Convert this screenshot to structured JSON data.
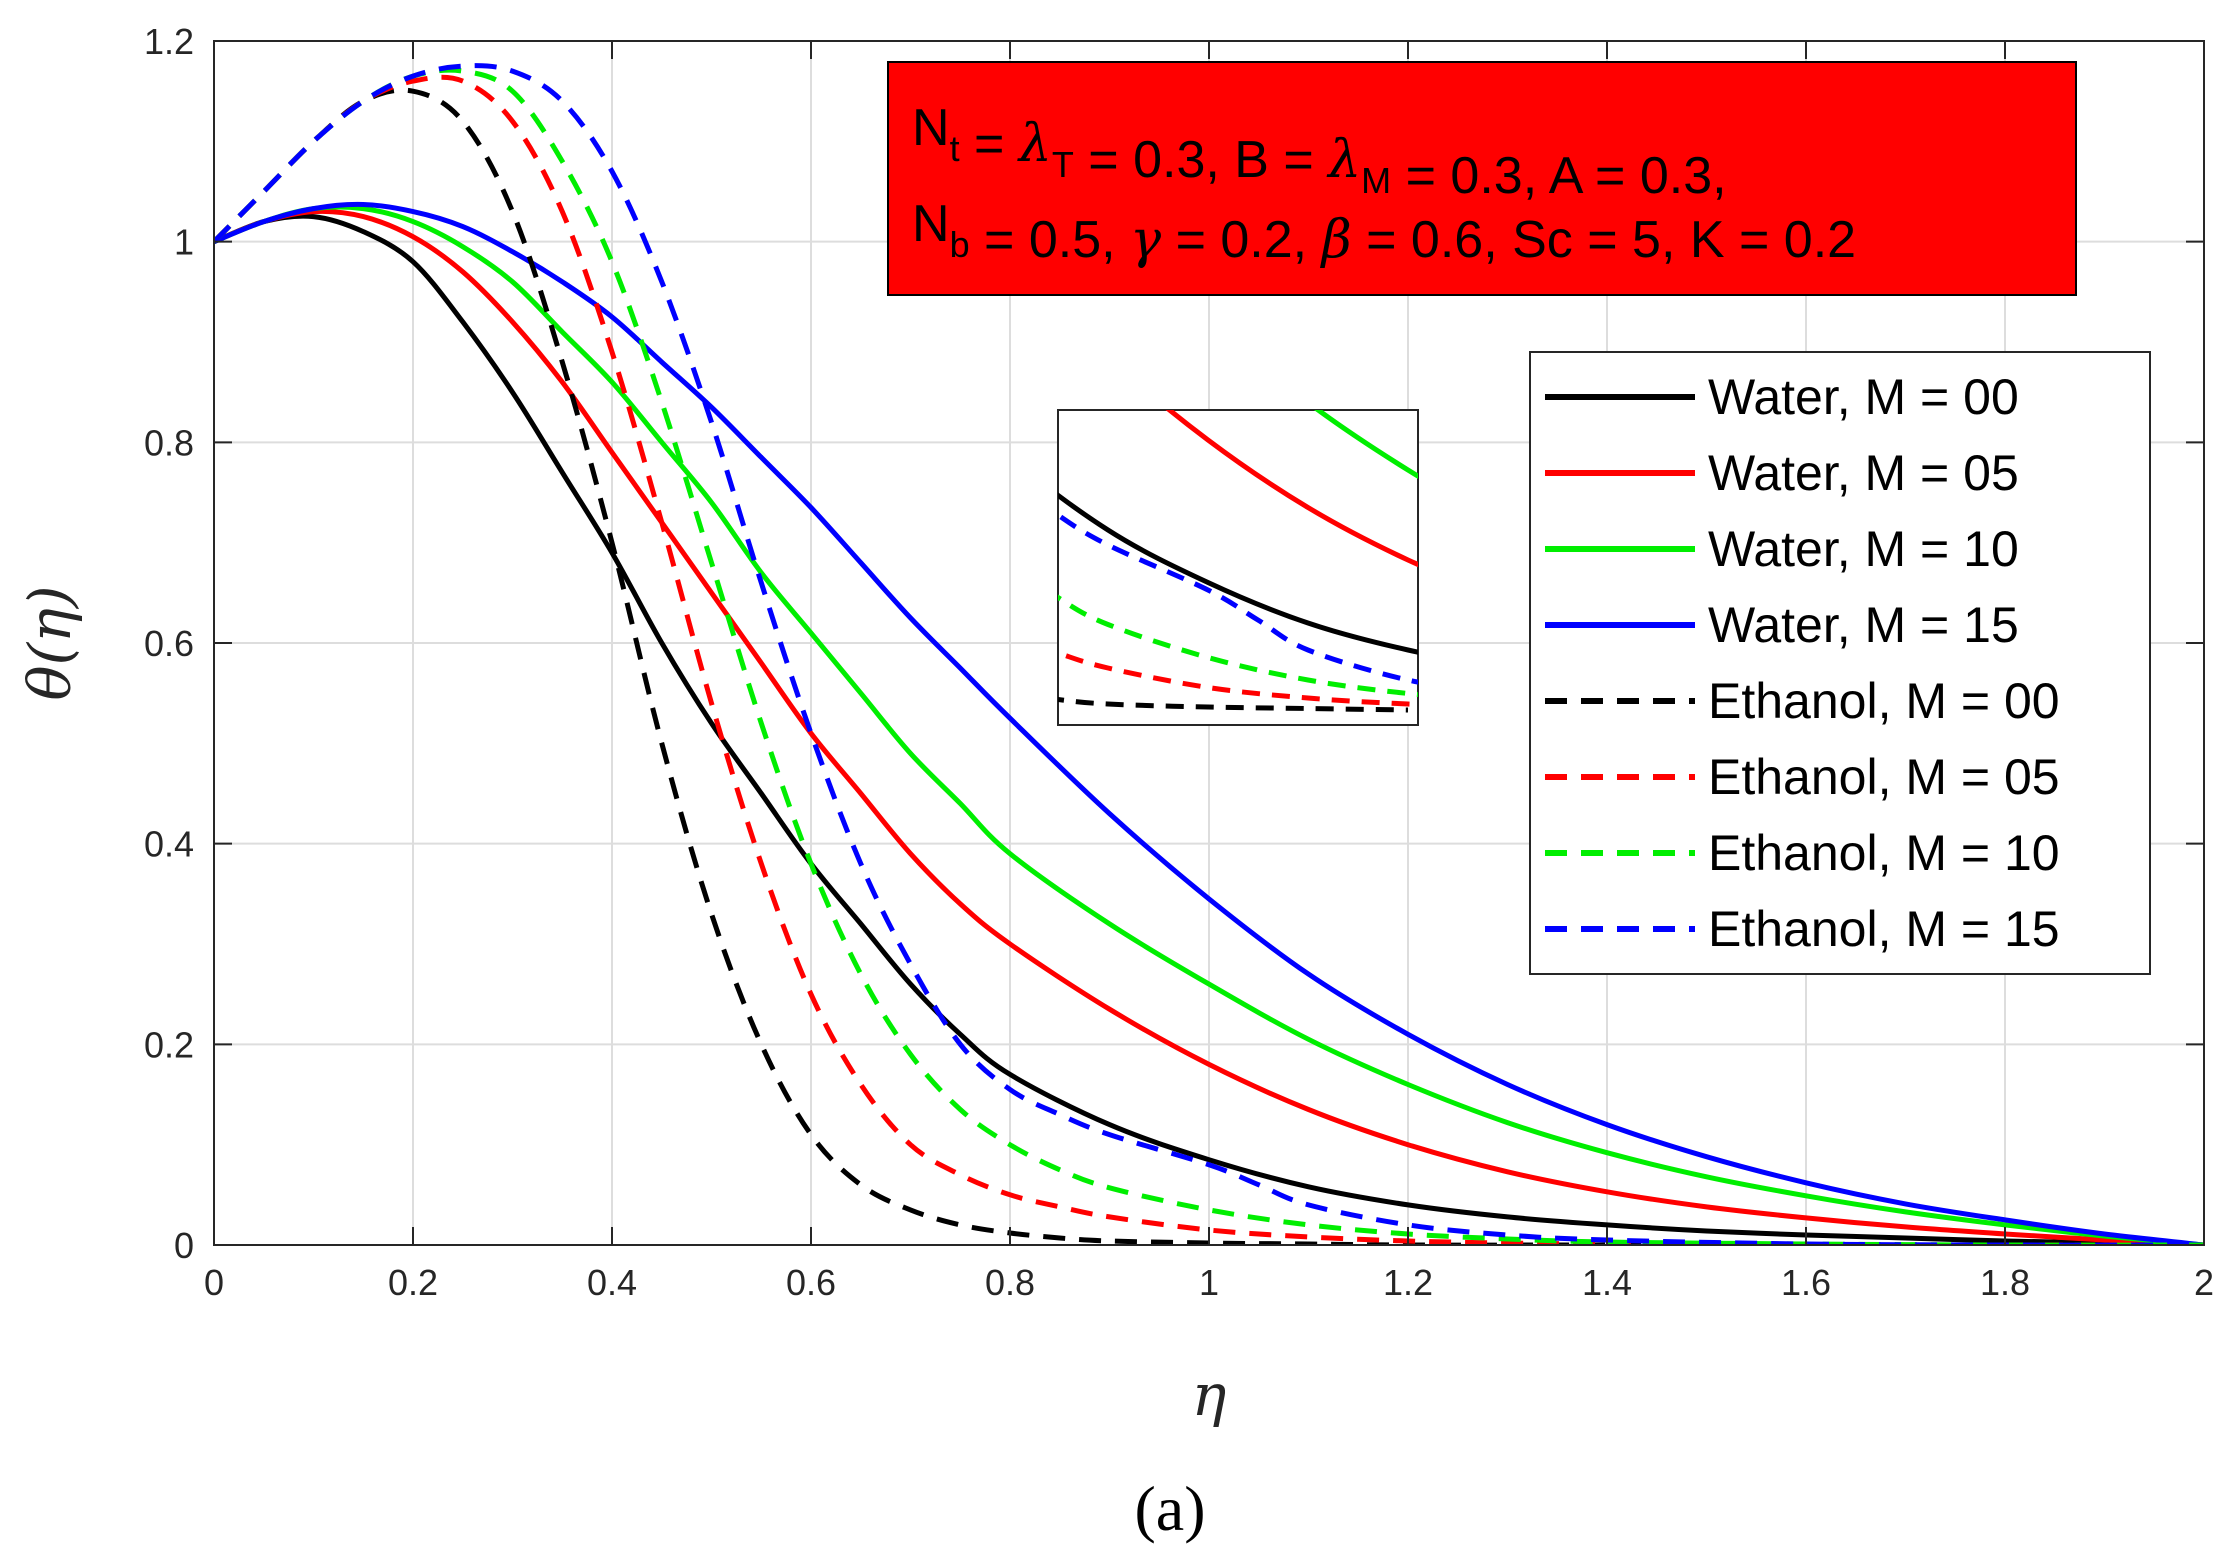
{
  "chart_data": {
    "type": "line",
    "xlabel": "η",
    "ylabel": "θ(η)",
    "xlim": [
      0,
      2
    ],
    "ylim": [
      0,
      1.2
    ],
    "x_ticks": [
      "0",
      "0.2",
      "0.4",
      "0.6",
      "0.8",
      "1",
      "1.2",
      "1.4",
      "1.6",
      "1.8",
      "2"
    ],
    "y_ticks": [
      "0",
      "0.2",
      "0.4",
      "0.6",
      "0.8",
      "1",
      "1.2"
    ],
    "grid": true,
    "legend_position": "right",
    "caption": "(a)",
    "annotation": {
      "line1": [
        {
          "t": "N",
          "style": "normal"
        },
        {
          "t": "t",
          "style": "sub"
        },
        {
          "t": " = ",
          "style": "normal"
        },
        {
          "t": "λ",
          "style": "greek"
        },
        {
          "t": "T",
          "style": "sub"
        },
        {
          "t": " = 0.3, B = ",
          "style": "normal"
        },
        {
          "t": "λ",
          "style": "greek"
        },
        {
          "t": "M",
          "style": "sub"
        },
        {
          "t": " = 0.3, A = 0.3,",
          "style": "normal"
        }
      ],
      "line2": [
        {
          "t": "N",
          "style": "normal"
        },
        {
          "t": "b",
          "style": "sub"
        },
        {
          "t": " = 0.5, ",
          "style": "normal"
        },
        {
          "t": "γ",
          "style": "greek"
        },
        {
          "t": " = 0.2, ",
          "style": "normal"
        },
        {
          "t": "β",
          "style": "greek"
        },
        {
          "t": " = 0.6, Sc = 5, K = 0.2",
          "style": "normal"
        }
      ],
      "background": "#ff0000"
    },
    "series": [
      {
        "name": "Water, M = 00",
        "color": "#000000",
        "dash": "solid",
        "x": [
          0,
          0.05,
          0.1,
          0.15,
          0.2,
          0.25,
          0.3,
          0.35,
          0.4,
          0.45,
          0.5,
          0.55,
          0.6,
          0.65,
          0.7,
          0.75,
          0.8,
          0.9,
          1.0,
          1.1,
          1.2,
          1.3,
          1.4,
          1.5,
          1.6,
          1.7,
          1.8,
          1.9,
          2.0
        ],
        "y": [
          1.0,
          1.02,
          1.025,
          1.01,
          0.98,
          0.92,
          0.85,
          0.77,
          0.69,
          0.6,
          0.52,
          0.45,
          0.38,
          0.32,
          0.26,
          0.21,
          0.17,
          0.12,
          0.085,
          0.058,
          0.04,
          0.028,
          0.02,
          0.014,
          0.01,
          0.007,
          0.004,
          0.002,
          0.0
        ]
      },
      {
        "name": "Water, M = 05",
        "color": "#ff0000",
        "dash": "solid",
        "x": [
          0,
          0.05,
          0.1,
          0.15,
          0.2,
          0.25,
          0.3,
          0.35,
          0.4,
          0.45,
          0.5,
          0.55,
          0.6,
          0.65,
          0.7,
          0.75,
          0.8,
          0.9,
          1.0,
          1.1,
          1.2,
          1.3,
          1.4,
          1.5,
          1.6,
          1.7,
          1.8,
          1.9,
          2.0
        ],
        "y": [
          1.0,
          1.02,
          1.03,
          1.025,
          1.005,
          0.97,
          0.92,
          0.86,
          0.79,
          0.72,
          0.65,
          0.58,
          0.51,
          0.45,
          0.39,
          0.34,
          0.3,
          0.235,
          0.18,
          0.135,
          0.1,
          0.073,
          0.053,
          0.038,
          0.027,
          0.018,
          0.011,
          0.005,
          0.0
        ]
      },
      {
        "name": "Water, M = 10",
        "color": "#00ee00",
        "dash": "solid",
        "x": [
          0,
          0.05,
          0.1,
          0.15,
          0.2,
          0.25,
          0.3,
          0.35,
          0.4,
          0.45,
          0.5,
          0.55,
          0.6,
          0.65,
          0.7,
          0.75,
          0.8,
          0.9,
          1.0,
          1.1,
          1.2,
          1.3,
          1.4,
          1.5,
          1.6,
          1.7,
          1.8,
          1.9,
          2.0
        ],
        "y": [
          1.0,
          1.02,
          1.033,
          1.033,
          1.02,
          0.995,
          0.96,
          0.91,
          0.86,
          0.8,
          0.74,
          0.67,
          0.61,
          0.55,
          0.49,
          0.44,
          0.39,
          0.32,
          0.26,
          0.205,
          0.16,
          0.122,
          0.092,
          0.068,
          0.049,
          0.033,
          0.02,
          0.009,
          0.0
        ]
      },
      {
        "name": "Water, M = 15",
        "color": "#0000ff",
        "dash": "solid",
        "x": [
          0,
          0.05,
          0.1,
          0.15,
          0.2,
          0.25,
          0.3,
          0.35,
          0.4,
          0.45,
          0.5,
          0.55,
          0.6,
          0.65,
          0.7,
          0.75,
          0.8,
          0.9,
          1.0,
          1.1,
          1.2,
          1.3,
          1.4,
          1.5,
          1.6,
          1.7,
          1.8,
          1.9,
          2.0
        ],
        "y": [
          1.0,
          1.02,
          1.033,
          1.037,
          1.03,
          1.015,
          0.99,
          0.96,
          0.925,
          0.88,
          0.835,
          0.785,
          0.735,
          0.68,
          0.625,
          0.575,
          0.525,
          0.43,
          0.345,
          0.27,
          0.21,
          0.16,
          0.12,
          0.088,
          0.062,
          0.041,
          0.025,
          0.011,
          0.0
        ]
      },
      {
        "name": "Ethanol, M = 00",
        "color": "#000000",
        "dash": "dashed",
        "x": [
          0,
          0.05,
          0.1,
          0.15,
          0.2,
          0.25,
          0.3,
          0.35,
          0.4,
          0.45,
          0.5,
          0.55,
          0.6,
          0.65,
          0.7,
          0.75,
          0.8,
          0.85,
          0.9,
          1.0,
          1.1,
          1.2,
          1.4,
          1.6,
          1.8,
          2.0
        ],
        "y": [
          1.0,
          1.05,
          1.1,
          1.14,
          1.15,
          1.12,
          1.03,
          0.88,
          0.7,
          0.5,
          0.33,
          0.2,
          0.11,
          0.06,
          0.035,
          0.02,
          0.012,
          0.007,
          0.004,
          0.002,
          0.001,
          0.0,
          0.0,
          0.0,
          0.0,
          0.0
        ]
      },
      {
        "name": "Ethanol, M = 05",
        "color": "#ff0000",
        "dash": "dashed",
        "x": [
          0,
          0.05,
          0.1,
          0.15,
          0.2,
          0.25,
          0.3,
          0.35,
          0.4,
          0.45,
          0.5,
          0.55,
          0.6,
          0.65,
          0.7,
          0.75,
          0.8,
          0.85,
          0.9,
          1.0,
          1.1,
          1.2,
          1.3,
          1.4,
          1.6,
          1.8,
          2.0
        ],
        "y": [
          1.0,
          1.05,
          1.1,
          1.14,
          1.16,
          1.16,
          1.12,
          1.03,
          0.89,
          0.72,
          0.54,
          0.38,
          0.25,
          0.16,
          0.1,
          0.07,
          0.05,
          0.038,
          0.028,
          0.015,
          0.008,
          0.004,
          0.002,
          0.001,
          0.0,
          0.0,
          0.0
        ]
      },
      {
        "name": "Ethanol, M = 10",
        "color": "#00ee00",
        "dash": "dashed",
        "x": [
          0,
          0.05,
          0.1,
          0.15,
          0.2,
          0.25,
          0.3,
          0.35,
          0.4,
          0.45,
          0.5,
          0.55,
          0.6,
          0.65,
          0.7,
          0.75,
          0.8,
          0.85,
          0.9,
          1.0,
          1.1,
          1.2,
          1.3,
          1.4,
          1.6,
          1.8,
          2.0
        ],
        "y": [
          1.0,
          1.05,
          1.1,
          1.14,
          1.165,
          1.17,
          1.15,
          1.08,
          0.98,
          0.84,
          0.68,
          0.52,
          0.38,
          0.27,
          0.19,
          0.135,
          0.1,
          0.075,
          0.057,
          0.035,
          0.02,
          0.011,
          0.006,
          0.003,
          0.001,
          0.0,
          0.0
        ]
      },
      {
        "name": "Ethanol, M = 15",
        "color": "#0000ff",
        "dash": "dashed",
        "x": [
          0,
          0.05,
          0.1,
          0.15,
          0.2,
          0.25,
          0.3,
          0.35,
          0.4,
          0.45,
          0.5,
          0.55,
          0.6,
          0.65,
          0.7,
          0.75,
          0.8,
          0.85,
          0.9,
          1.0,
          1.05,
          1.1,
          1.2,
          1.3,
          1.4,
          1.6,
          1.8,
          2.0
        ],
        "y": [
          1.0,
          1.05,
          1.1,
          1.14,
          1.165,
          1.175,
          1.17,
          1.14,
          1.07,
          0.96,
          0.82,
          0.66,
          0.51,
          0.38,
          0.28,
          0.2,
          0.155,
          0.13,
          0.11,
          0.08,
          0.06,
          0.04,
          0.02,
          0.01,
          0.005,
          0.001,
          0.0,
          0.0
        ]
      }
    ]
  }
}
